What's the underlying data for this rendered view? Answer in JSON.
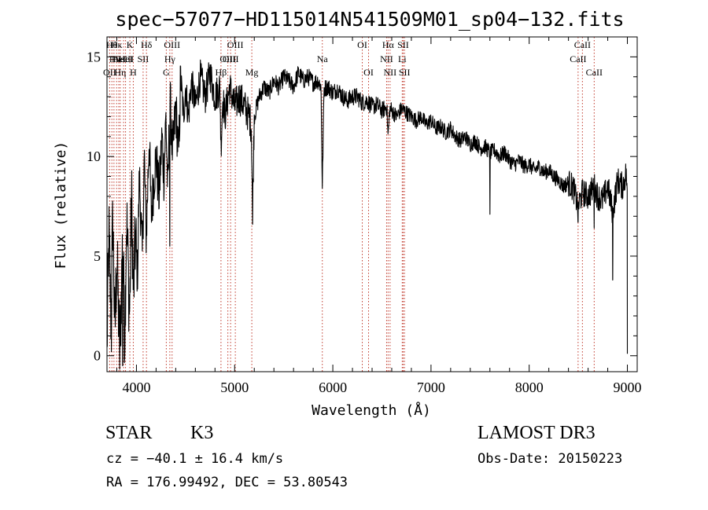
{
  "chart_data": {
    "type": "line",
    "title": "spec−57077−HD115014N541509M01_sp04−132.fits",
    "xlabel": "Wavelength (Å)",
    "ylabel": "Flux (relative)",
    "xlim": [
      3700,
      9100
    ],
    "ylim": [
      -0.8,
      16
    ],
    "x_ticks": [
      4000,
      5000,
      6000,
      7000,
      8000,
      9000
    ],
    "y_ticks": [
      0,
      5,
      10,
      15
    ],
    "grid": false,
    "series": [
      {
        "name": "spectrum",
        "anchors_x": [
          3700,
          3720,
          3740,
          3760,
          3780,
          3800,
          3830,
          3860,
          3880,
          3900,
          3930,
          3950,
          3970,
          3990,
          4010,
          4030,
          4060,
          4080,
          4100,
          4130,
          4150,
          4180,
          4200,
          4230,
          4260,
          4280,
          4300,
          4320,
          4340,
          4370,
          4400,
          4430,
          4450,
          4480,
          4500,
          4530,
          4560,
          4600,
          4650,
          4700,
          4750,
          4800,
          4850,
          4861,
          4880,
          4900,
          4950,
          5000,
          5050,
          5100,
          5150,
          5170,
          5183,
          5200,
          5250,
          5300,
          5350,
          5400,
          5450,
          5500,
          5550,
          5600,
          5650,
          5700,
          5750,
          5800,
          5850,
          5880,
          5893,
          5910,
          5950,
          6000,
          6050,
          6100,
          6150,
          6200,
          6250,
          6300,
          6350,
          6400,
          6450,
          6500,
          6550,
          6563,
          6580,
          6600,
          6650,
          6700,
          6750,
          6800,
          6850,
          6900,
          6950,
          7000,
          7050,
          7100,
          7150,
          7200,
          7250,
          7300,
          7350,
          7400,
          7450,
          7500,
          7550,
          7600,
          7650,
          7700,
          7750,
          7800,
          7850,
          7900,
          7950,
          8000,
          8050,
          8100,
          8150,
          8200,
          8250,
          8300,
          8350,
          8400,
          8450,
          8498,
          8542,
          8600,
          8662,
          8700,
          8750,
          8800,
          8850,
          8900,
          8950,
          8990,
          9000
        ],
        "anchors_y": [
          0.5,
          6,
          2,
          7,
          1,
          5,
          0,
          6,
          1,
          7,
          2,
          8,
          3,
          6,
          4,
          9,
          5,
          10,
          6,
          11,
          7,
          9,
          10,
          8,
          11,
          9,
          12,
          8,
          13,
          10,
          12.5,
          10,
          14,
          12,
          13.5,
          12,
          13.8,
          12.5,
          14,
          13,
          14.2,
          13,
          13.5,
          10.5,
          13,
          12,
          13.5,
          12.5,
          13,
          12.5,
          12,
          11.5,
          7.5,
          12,
          13,
          13.5,
          13.2,
          13.8,
          13.5,
          14,
          13.8,
          13.5,
          14.2,
          13.8,
          14,
          13.7,
          13.8,
          13.5,
          8.5,
          13.4,
          13.5,
          13.2,
          13.4,
          13,
          12.8,
          13,
          13,
          12.7,
          12.8,
          12.5,
          12.6,
          12.3,
          12.5,
          11,
          12.4,
          12.3,
          12,
          12.4,
          12.2,
          12,
          11.8,
          12,
          11.6,
          11.8,
          11.4,
          11.5,
          11.2,
          11.4,
          11,
          10.8,
          11,
          10.6,
          10.8,
          10.4,
          10.5,
          10.2,
          10.3,
          10,
          10.2,
          9.8,
          9.6,
          9.8,
          9.5,
          9.6,
          9.3,
          9.5,
          9.2,
          9.3,
          9,
          8.8,
          8.5,
          8.7,
          8.4,
          7.5,
          8.2,
          8,
          8.5,
          8,
          7.8,
          8.5,
          7.2,
          8.8,
          8.5,
          9.2,
          7.5
        ],
        "sharp_features": [
          {
            "x": 3745,
            "y": 0.2
          },
          {
            "x": 3860,
            "y": -0.5
          },
          {
            "x": 4340,
            "y": 5.5
          },
          {
            "x": 5183,
            "y": 6.6
          },
          {
            "x": 5893,
            "y": 8.4
          },
          {
            "x": 7600,
            "y": 7.1
          },
          {
            "x": 8498,
            "y": 6.7
          },
          {
            "x": 8662,
            "y": 6.4
          },
          {
            "x": 8850,
            "y": 3.8
          },
          {
            "x": 9000,
            "y": 0.1
          }
        ]
      }
    ],
    "spectral_lines": [
      {
        "x": 3727,
        "label": "OII",
        "row": 2
      },
      {
        "x": 3750,
        "label": "Hθ",
        "row": 0
      },
      {
        "x": 3771,
        "label": "Hι",
        "row": 1
      },
      {
        "x": 3798,
        "label": "Hκ",
        "row": 0
      },
      {
        "x": 3820,
        "label": "HeI",
        "row": 1
      },
      {
        "x": 3835,
        "label": "Hη",
        "row": 2
      },
      {
        "x": 3869,
        "label": "NeIII",
        "row": 1
      },
      {
        "x": 3889,
        "label": "HeI",
        "row": 1
      },
      {
        "x": 3933,
        "label": "K",
        "row": 0
      },
      {
        "x": 3968,
        "label": "H",
        "row": 2
      },
      {
        "x": 4068,
        "label": "SII",
        "row": 1
      },
      {
        "x": 4102,
        "label": "Hδ",
        "row": 0
      },
      {
        "x": 4304,
        "label": "G",
        "row": 2
      },
      {
        "x": 4340,
        "label": "Hγ",
        "row": 1
      },
      {
        "x": 4363,
        "label": "OIII",
        "row": 0
      },
      {
        "x": 4861,
        "label": "Hβ",
        "row": 2
      },
      {
        "x": 4931,
        "label": "OIII",
        "row": 1
      },
      {
        "x": 4959,
        "label": "OIII",
        "row": 1
      },
      {
        "x": 5007,
        "label": "OIII",
        "row": 0
      },
      {
        "x": 5175,
        "label": "Mg",
        "row": 2
      },
      {
        "x": 5893,
        "label": "Na",
        "row": 1
      },
      {
        "x": 6300,
        "label": "OI",
        "row": 0
      },
      {
        "x": 6364,
        "label": "OI",
        "row": 2
      },
      {
        "x": 6548,
        "label": "NII",
        "row": 1
      },
      {
        "x": 6563,
        "label": "Hα",
        "row": 0
      },
      {
        "x": 6583,
        "label": "NII",
        "row": 2
      },
      {
        "x": 6707,
        "label": "Li",
        "row": 1
      },
      {
        "x": 6716,
        "label": "SII",
        "row": 0
      },
      {
        "x": 6730,
        "label": "SII",
        "row": 2
      },
      {
        "x": 8498,
        "label": "CaII",
        "row": 1
      },
      {
        "x": 8542,
        "label": "CaII",
        "row": 0
      },
      {
        "x": 8662,
        "label": "CaII",
        "row": 2
      }
    ]
  },
  "info": {
    "object_class": "STAR",
    "subclass": "K3",
    "survey": "LAMOST DR3",
    "redshift": "cz = −40.1 ± 16.4 km/s",
    "obs_date": "Obs-Date: 20150223",
    "coordinates": "RA = 176.99492, DEC =  53.80543"
  }
}
